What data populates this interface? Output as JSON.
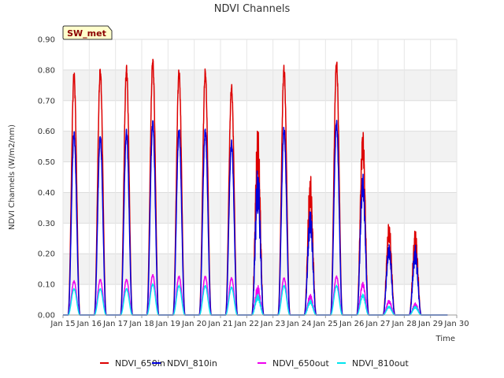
{
  "chart_data": {
    "type": "line",
    "title": "NDVI Channels",
    "xlabel": "Time",
    "ylabel": "NDVI Channels (W/m2/nm)",
    "badge": "SW_met",
    "ylim": [
      0,
      0.9
    ],
    "xlim": [
      15,
      30
    ],
    "yticks": [
      {
        "v": 0.0,
        "label": "0.00"
      },
      {
        "v": 0.1,
        "label": "0.10"
      },
      {
        "v": 0.2,
        "label": "0.20"
      },
      {
        "v": 0.3,
        "label": "0.30"
      },
      {
        "v": 0.4,
        "label": "0.40"
      },
      {
        "v": 0.5,
        "label": "0.50"
      },
      {
        "v": 0.6,
        "label": "0.60"
      },
      {
        "v": 0.7,
        "label": "0.70"
      },
      {
        "v": 0.8,
        "label": "0.80"
      },
      {
        "v": 0.9,
        "label": "0.90"
      }
    ],
    "xticks": [
      {
        "v": 15,
        "label": "Jan 15"
      },
      {
        "v": 16,
        "label": "Jan 16"
      },
      {
        "v": 17,
        "label": "Jan 17"
      },
      {
        "v": 18,
        "label": "Jan 18"
      },
      {
        "v": 19,
        "label": "Jan 19"
      },
      {
        "v": 20,
        "label": "Jan 20"
      },
      {
        "v": 21,
        "label": "Jan 21"
      },
      {
        "v": 22,
        "label": "Jan 22"
      },
      {
        "v": 23,
        "label": "Jan 23"
      },
      {
        "v": 24,
        "label": "Jan 24"
      },
      {
        "v": 25,
        "label": "Jan 25"
      },
      {
        "v": 26,
        "label": "Jan 26"
      },
      {
        "v": 27,
        "label": "Jan 27"
      },
      {
        "v": 28,
        "label": "Jan 28"
      },
      {
        "v": 29,
        "label": "Jan 29"
      },
      {
        "v": 30,
        "label": "Jan 30"
      }
    ],
    "day_centers": [
      15.42,
      16.42,
      17.42,
      18.42,
      19.42,
      20.42,
      21.42,
      22.42,
      23.42,
      24.42,
      25.42,
      26.42,
      27.42,
      28.42
    ],
    "series": [
      {
        "name": "NDVI_650in",
        "color": "#dd0000",
        "peaks": [
          0.78,
          0.795,
          0.8,
          0.825,
          0.79,
          0.79,
          0.74,
          0.64,
          0.8,
          0.47,
          0.82,
          0.62,
          0.31,
          0.29
        ]
      },
      {
        "name": "NDVI_810in",
        "color": "#0000dd",
        "peaks": [
          0.59,
          0.58,
          0.595,
          0.625,
          0.6,
          0.6,
          0.56,
          0.5,
          0.605,
          0.36,
          0.625,
          0.47,
          0.24,
          0.23
        ]
      },
      {
        "name": "NDVI_650out",
        "color": "#ee00ee",
        "peaks": [
          0.11,
          0.115,
          0.115,
          0.13,
          0.125,
          0.125,
          0.12,
          0.1,
          0.12,
          0.07,
          0.125,
          0.11,
          0.05,
          0.04
        ]
      },
      {
        "name": "NDVI_810out",
        "color": "#00e5ee",
        "peaks": [
          0.085,
          0.085,
          0.085,
          0.1,
          0.095,
          0.095,
          0.09,
          0.07,
          0.095,
          0.05,
          0.095,
          0.07,
          0.03,
          0.03
        ]
      }
    ]
  }
}
